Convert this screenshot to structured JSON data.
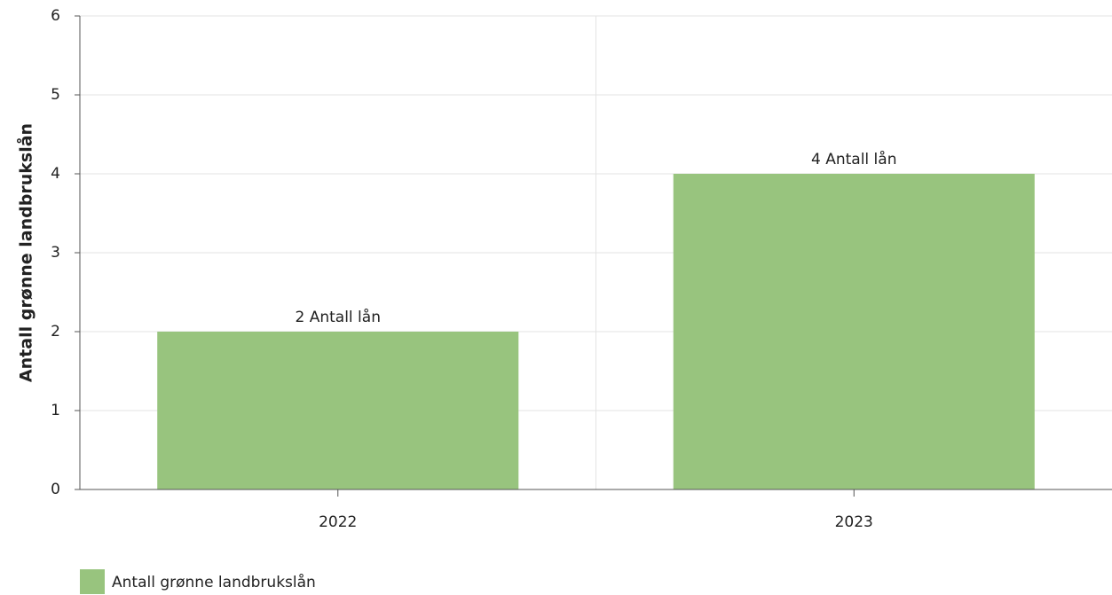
{
  "chart_data": {
    "type": "bar",
    "y_label": "Antall grønne landbrukslån",
    "categories": [
      "2022",
      "2023"
    ],
    "series": [
      {
        "name": "Antall grønne landbrukslån",
        "color": "#98c47e",
        "values": [
          2,
          4
        ],
        "value_labels": [
          "2 Antall lån",
          "4 Antall lån"
        ]
      }
    ],
    "ylim": [
      0,
      6
    ],
    "yticks": [
      0,
      1,
      2,
      3,
      4,
      5,
      6
    ],
    "grid": true,
    "legend": "bottom-left"
  }
}
